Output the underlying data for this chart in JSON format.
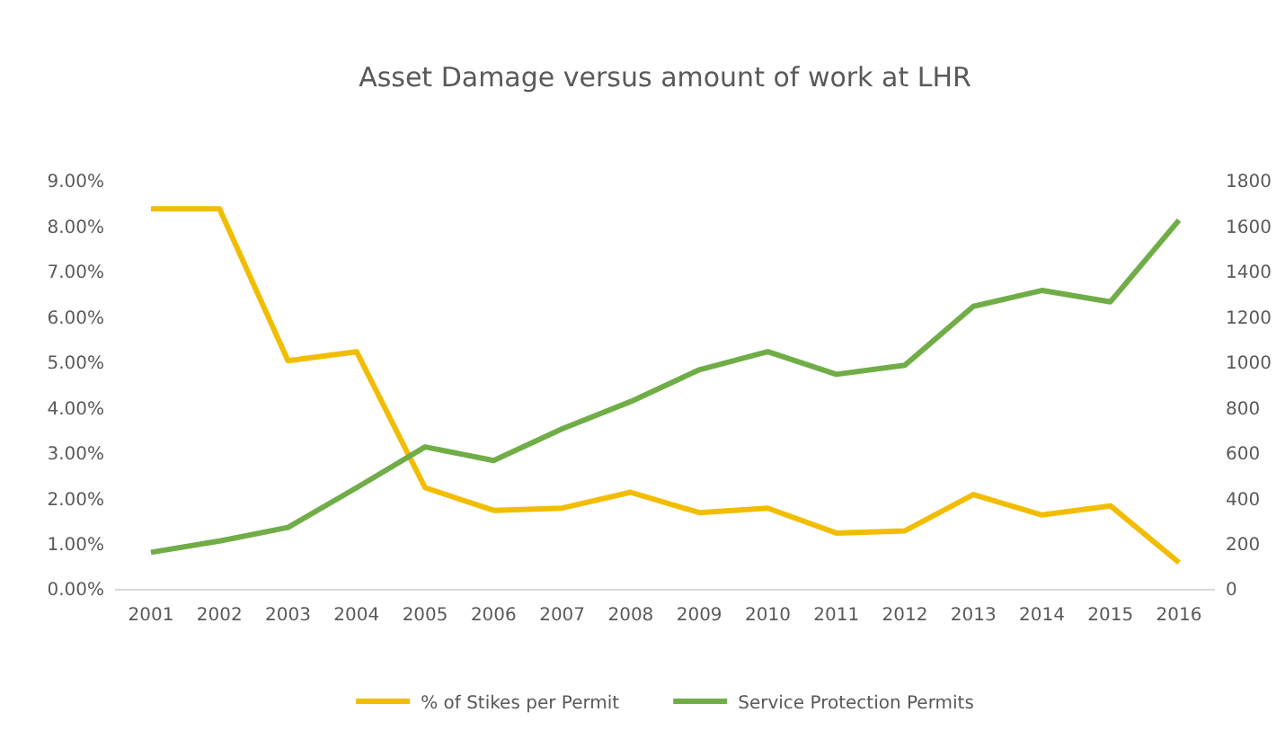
{
  "chart_data": {
    "type": "line",
    "title": "Asset Damage versus amount of work at LHR",
    "categories": [
      "2001",
      "2002",
      "2003",
      "2004",
      "2005",
      "2006",
      "2007",
      "2008",
      "2009",
      "2010",
      "2011",
      "2012",
      "2013",
      "2014",
      "2015",
      "2016"
    ],
    "series": [
      {
        "name": "% of Stikes per Permit",
        "color": "#f2bd00",
        "values": [
          8.4,
          8.4,
          5.05,
          5.25,
          2.25,
          1.75,
          1.8,
          2.15,
          1.7,
          1.8,
          1.25,
          1.3,
          2.1,
          1.65,
          1.85,
          0.6
        ]
      },
      {
        "name": "Service Protection Permits",
        "color": "#70ad47",
        "axis": "y2",
        "values": [
          165,
          215,
          275,
          450,
          630,
          570,
          710,
          830,
          970,
          1050,
          950,
          990,
          1250,
          1320,
          1270,
          1630
        ]
      }
    ],
    "ylim": [
      0,
      9
    ],
    "yticks": [
      {
        "value": 0,
        "label": "0.00%"
      },
      {
        "value": 1,
        "label": "1.00%"
      },
      {
        "value": 2,
        "label": "2.00%"
      },
      {
        "value": 3,
        "label": "3.00%"
      },
      {
        "value": 4,
        "label": "4.00%"
      },
      {
        "value": 5,
        "label": "5.00%"
      },
      {
        "value": 6,
        "label": "6.00%"
      },
      {
        "value": 7,
        "label": "7.00%"
      },
      {
        "value": 8,
        "label": "8.00%"
      },
      {
        "value": 9,
        "label": "9.00%"
      }
    ],
    "y2lim": [
      0,
      1800
    ],
    "y2ticks": [
      0,
      200,
      400,
      600,
      800,
      1000,
      1200,
      1400,
      1600,
      1800
    ],
    "legend": "bottom",
    "marker": "none",
    "line_style": "solid"
  }
}
